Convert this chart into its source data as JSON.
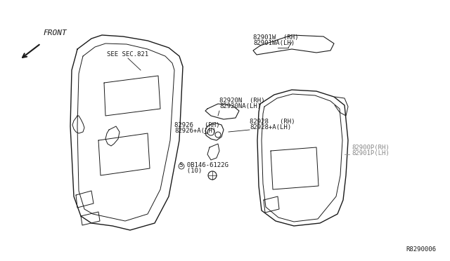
{
  "bg_color": "#ffffff",
  "diagram_ref": "R8290006",
  "line_color": "#1a1a1a",
  "text_color": "#1a1a1a",
  "gray_color": "#888888",
  "font_size": 6.5,
  "parts_labels": {
    "front": "FRONT",
    "see": "SEE SEC.821",
    "p1_line1": "82901W  (RH)",
    "p1_line2": "82901WA(LH)",
    "p2_line1": "82920N  (RH)",
    "p2_line2": "82920NA(LH)",
    "p3_line1": "82928   (RH)",
    "p3_line2": "82928+A(LH)",
    "p4_line1": "82926   (RH)",
    "p4_line2": "82926+A(LH)",
    "p5_line1": "82900P(RH)",
    "p5_line2": "82901P(LH)",
    "p6_line1": "S 0B146-6122G",
    "p6_line2": "  (10)"
  }
}
